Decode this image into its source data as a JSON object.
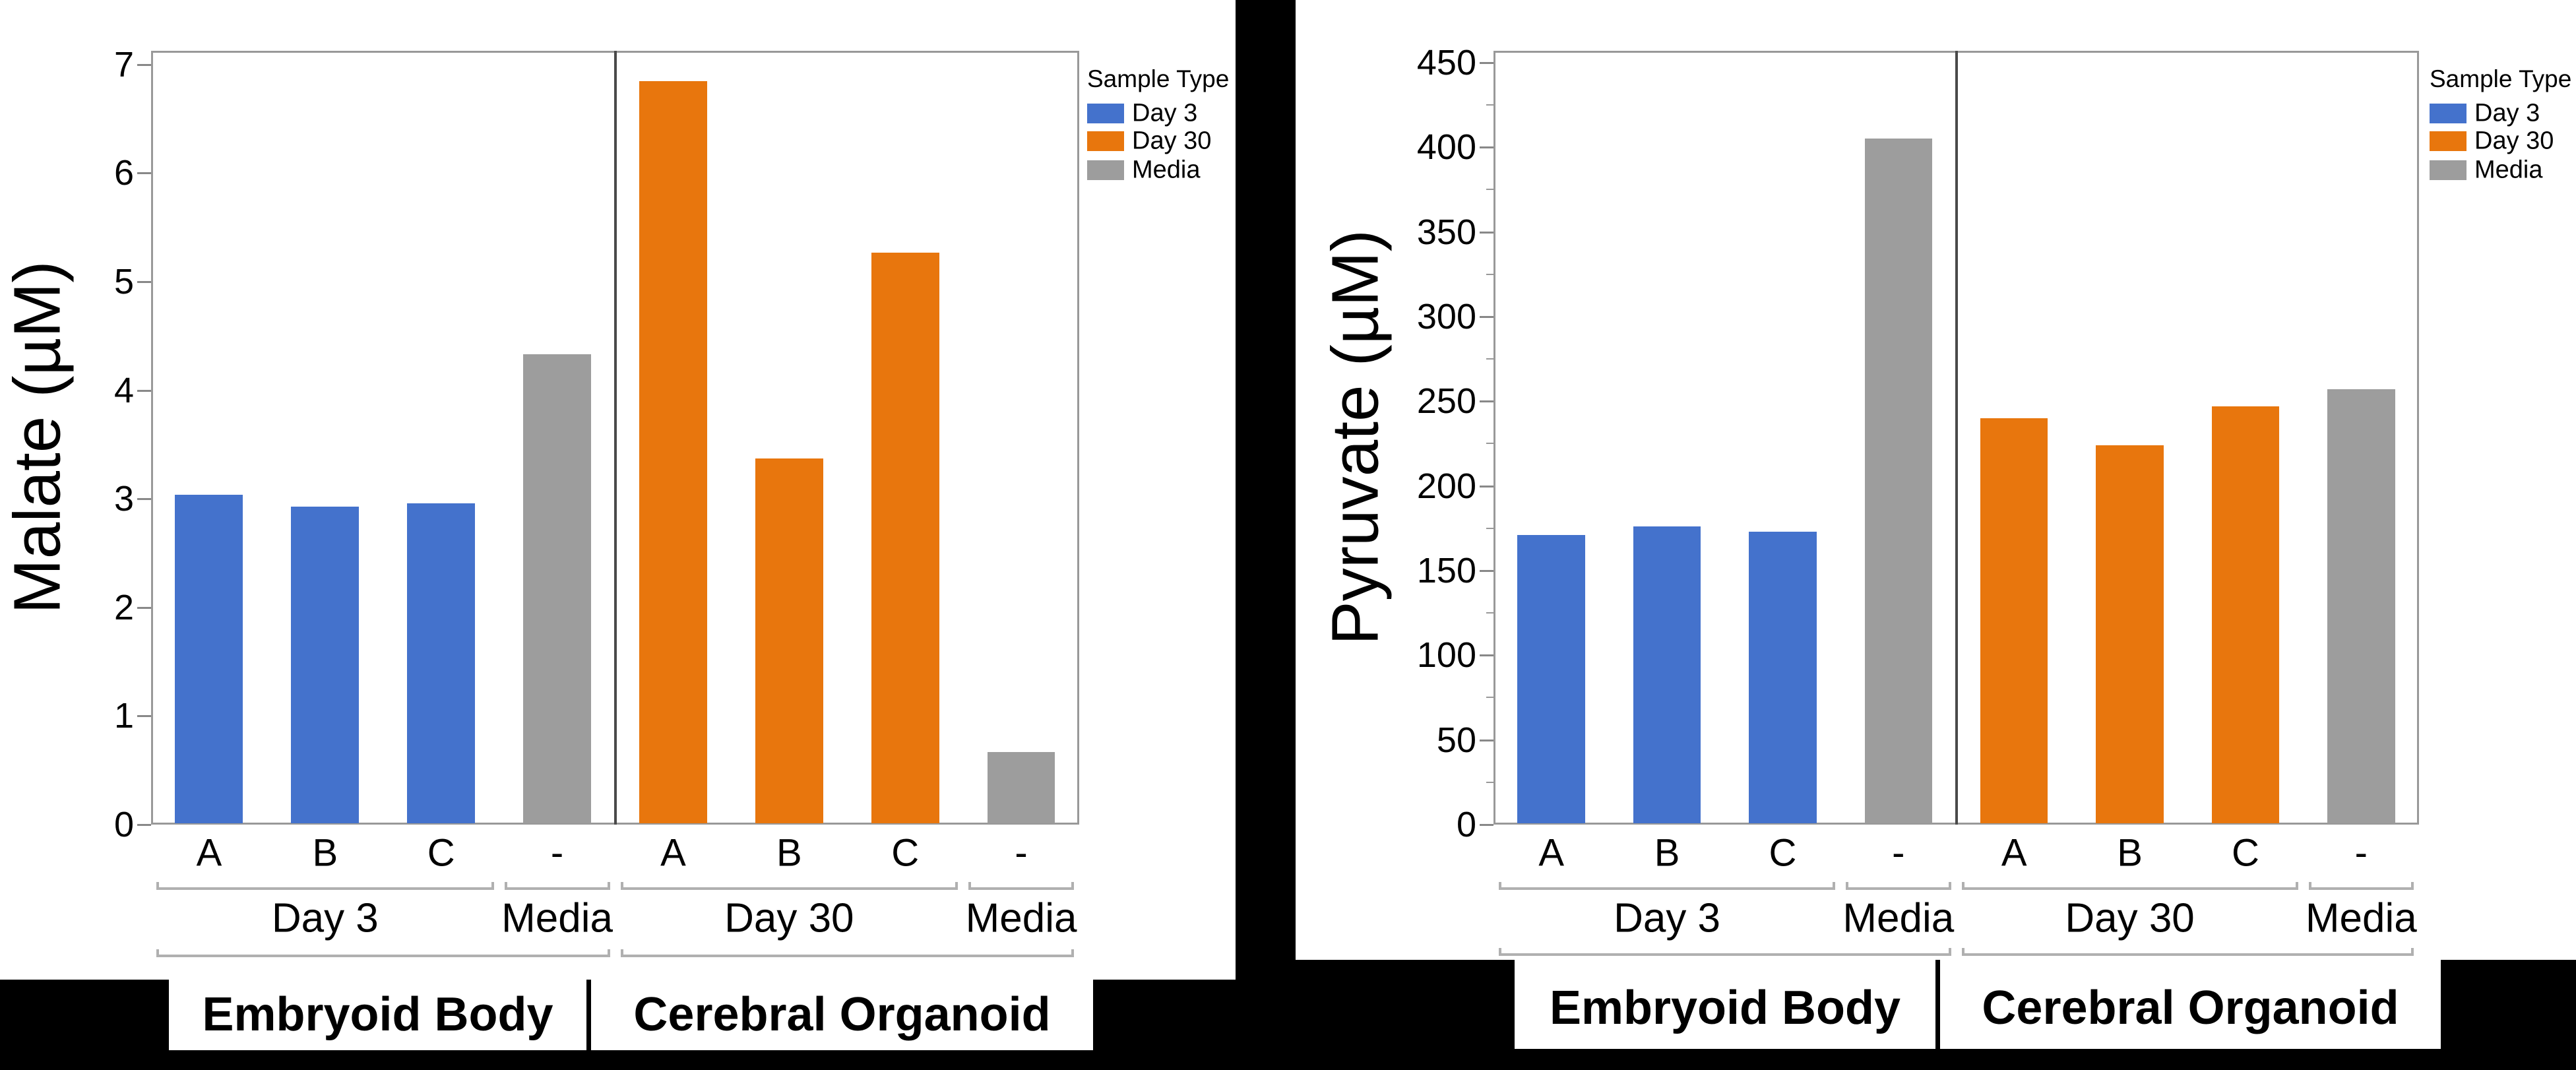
{
  "legend": {
    "title": "Sample Type",
    "items": [
      {
        "label": "Day 3",
        "key": "day3"
      },
      {
        "label": "Day 30",
        "key": "day30"
      },
      {
        "label": "Media",
        "key": "media"
      }
    ]
  },
  "colors": {
    "day3": "#4472CC",
    "day30": "#E8760D",
    "media": "#9D9D9D"
  },
  "chart_data": [
    {
      "id": "malate",
      "type": "bar",
      "ylabel": "Malate (µM)",
      "ylim": [
        0,
        7
      ],
      "ytick_step": 1,
      "yticks": [
        0,
        1,
        2,
        3,
        4,
        5,
        6,
        7
      ],
      "x_tick_labels": [
        "A",
        "B",
        "C",
        "-",
        "A",
        "B",
        "C",
        "-"
      ],
      "group_labels": [
        "Day 3",
        "Media",
        "Day 30",
        "Media"
      ],
      "panels": [
        "Embryoid Body",
        "Cerebral Organoid"
      ],
      "legend_position": "right",
      "grid": false,
      "bars": [
        {
          "panel": "Embryoid Body",
          "group": "Day 3",
          "x": "A",
          "series": "Day 3",
          "series_key": "day3",
          "value": 3.04
        },
        {
          "panel": "Embryoid Body",
          "group": "Day 3",
          "x": "B",
          "series": "Day 3",
          "series_key": "day3",
          "value": 2.93
        },
        {
          "panel": "Embryoid Body",
          "group": "Day 3",
          "x": "C",
          "series": "Day 3",
          "series_key": "day3",
          "value": 2.96
        },
        {
          "panel": "Embryoid Body",
          "group": "Media",
          "x": "-",
          "series": "Media",
          "series_key": "media",
          "value": 4.33
        },
        {
          "panel": "Cerebral Organoid",
          "group": "Day 30",
          "x": "A",
          "series": "Day 30",
          "series_key": "day30",
          "value": 6.85
        },
        {
          "panel": "Cerebral Organoid",
          "group": "Day 30",
          "x": "B",
          "series": "Day 30",
          "series_key": "day30",
          "value": 3.37
        },
        {
          "panel": "Cerebral Organoid",
          "group": "Day 30",
          "x": "C",
          "series": "Day 30",
          "series_key": "day30",
          "value": 5.27
        },
        {
          "panel": "Cerebral Organoid",
          "group": "Media",
          "x": "-",
          "series": "Media",
          "series_key": "media",
          "value": 0.67
        }
      ]
    },
    {
      "id": "pyruvate",
      "type": "bar",
      "ylabel": "Pyruvate (µM)",
      "ylim": [
        0,
        450
      ],
      "ytick_step": 50,
      "yticks": [
        0,
        50,
        100,
        150,
        200,
        250,
        300,
        350,
        400,
        450
      ],
      "x_tick_labels": [
        "A",
        "B",
        "C",
        "-",
        "A",
        "B",
        "C",
        "-"
      ],
      "group_labels": [
        "Day 3",
        "Media",
        "Day 30",
        "Media"
      ],
      "panels": [
        "Embryoid Body",
        "Cerebral Organoid"
      ],
      "legend_position": "right",
      "grid": false,
      "bars": [
        {
          "panel": "Embryoid Body",
          "group": "Day 3",
          "x": "A",
          "series": "Day 3",
          "series_key": "day3",
          "value": 171
        },
        {
          "panel": "Embryoid Body",
          "group": "Day 3",
          "x": "B",
          "series": "Day 3",
          "series_key": "day3",
          "value": 176
        },
        {
          "panel": "Embryoid Body",
          "group": "Day 3",
          "x": "C",
          "series": "Day 3",
          "series_key": "day3",
          "value": 173
        },
        {
          "panel": "Embryoid Body",
          "group": "Media",
          "x": "-",
          "series": "Media",
          "series_key": "media",
          "value": 405
        },
        {
          "panel": "Cerebral Organoid",
          "group": "Day 30",
          "x": "A",
          "series": "Day 30",
          "series_key": "day30",
          "value": 240
        },
        {
          "panel": "Cerebral Organoid",
          "group": "Day 30",
          "x": "B",
          "series": "Day 30",
          "series_key": "day30",
          "value": 224
        },
        {
          "panel": "Cerebral Organoid",
          "group": "Day 30",
          "x": "C",
          "series": "Day 30",
          "series_key": "day30",
          "value": 247
        },
        {
          "panel": "Cerebral Organoid",
          "group": "Media",
          "x": "-",
          "series": "Media",
          "series_key": "media",
          "value": 257
        }
      ]
    }
  ]
}
